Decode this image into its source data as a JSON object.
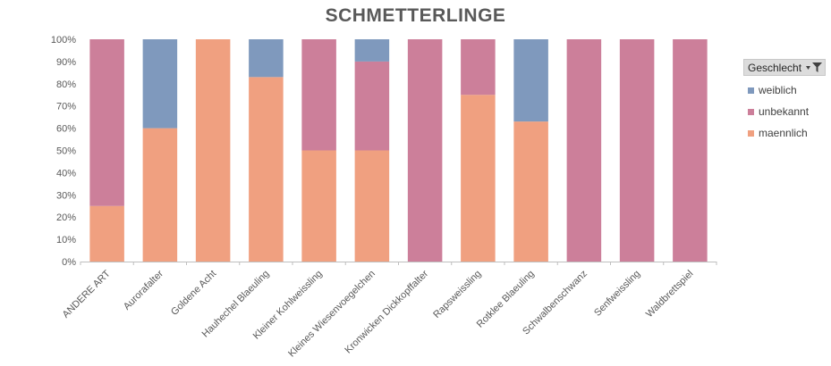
{
  "chart_data": {
    "type": "bar",
    "stacked": true,
    "title": "SCHMETTERLINGE",
    "categories": [
      "ANDERE ART",
      "Aurorafalter",
      "Goldene Acht",
      "Hauhechel Blaeuling",
      "Kleiner Kohlweissling",
      "Kleines Wiesenvoegelchen",
      "Kronwicken Dickkopffalter",
      "Rapsweissling",
      "Rotklee Blaeuling",
      "Schwalbenschwanz",
      "Senfweissling",
      "Waldbrettspiel"
    ],
    "series": [
      {
        "name": "maennlich",
        "color": "#f0a080",
        "values": [
          25,
          60,
          100,
          83,
          50,
          50,
          0,
          75,
          63,
          0,
          0,
          0
        ]
      },
      {
        "name": "unbekannt",
        "color": "#cc7f9a",
        "values": [
          75,
          0,
          0,
          0,
          50,
          40,
          100,
          25,
          0,
          100,
          100,
          100
        ]
      },
      {
        "name": "weiblich",
        "color": "#7f99bd",
        "values": [
          0,
          40,
          0,
          17,
          0,
          10,
          0,
          0,
          37,
          0,
          0,
          0
        ]
      }
    ],
    "ylim": [
      0,
      100
    ],
    "yticks": [
      "0%",
      "10%",
      "20%",
      "30%",
      "40%",
      "50%",
      "60%",
      "70%",
      "80%",
      "90%",
      "100%"
    ],
    "legend_position": "right",
    "grid": false
  },
  "legend": {
    "title": "Geschlecht",
    "filter_icon": "funnel-icon",
    "items": [
      {
        "name": "weiblich",
        "color": "#7f99bd"
      },
      {
        "name": "unbekannt",
        "color": "#cc7f9a"
      },
      {
        "name": "maennlich",
        "color": "#f0a080"
      }
    ]
  }
}
